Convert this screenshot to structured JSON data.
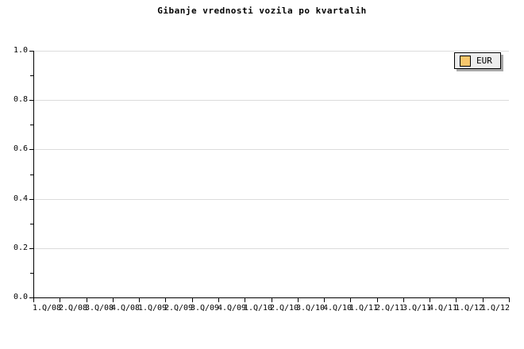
{
  "header": {
    "title": "Gibanje vrednosti vozila po kvartalih"
  },
  "legend": {
    "label": "EUR",
    "swatch_color": "#F8C66C",
    "background": "#EDEDED",
    "border_color": "#000000",
    "shadow_color": "#A8A8A8"
  },
  "colors": {
    "background": "#FFFFFF",
    "axis": "#000000",
    "grid": "#DCDCDC",
    "text": "#000000"
  },
  "chart_data": {
    "type": "line",
    "title": "Gibanje vrednosti vozila po kvartalih",
    "categories": [
      "1.Q/08",
      "2.Q/08",
      "3.Q/08",
      "4.Q/08",
      "1.Q/09",
      "2.Q/09",
      "3.Q/09",
      "4.Q/09",
      "1.Q/10",
      "2.Q/10",
      "3.Q/10",
      "4.Q/10",
      "1.Q/11",
      "2.Q/11",
      "3.Q/11",
      "4.Q/11",
      "1.Q/12",
      "1.Q/12"
    ],
    "series": [
      {
        "name": "EUR",
        "values": []
      }
    ],
    "xlabel": "",
    "ylabel": "",
    "ylim": [
      0.0,
      1.0
    ],
    "yticks_major": [
      0.0,
      0.2,
      0.4,
      0.6,
      0.8,
      1.0
    ],
    "ytick_labels": [
      "0.0",
      "0.2",
      "0.4",
      "0.6",
      "0.8",
      "1.0"
    ],
    "ytick_minor_step": 0.1,
    "grid": "horizontal-major",
    "grid_color": "#DCDCDC",
    "legend_position": "top-right",
    "note_plot_empty": "no data points rendered"
  }
}
